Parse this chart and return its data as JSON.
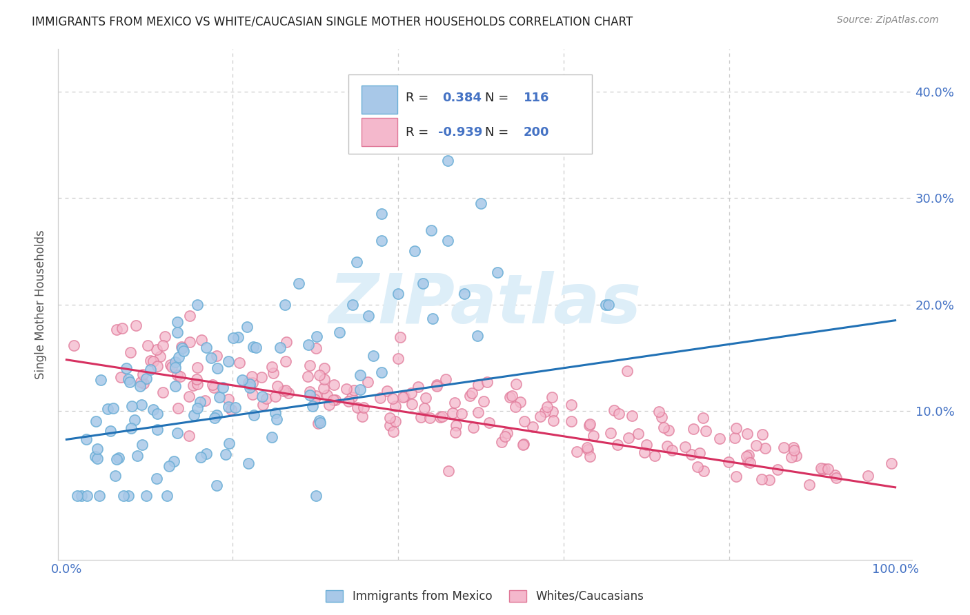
{
  "title": "IMMIGRANTS FROM MEXICO VS WHITE/CAUCASIAN SINGLE MOTHER HOUSEHOLDS CORRELATION CHART",
  "source": "Source: ZipAtlas.com",
  "ylabel": "Single Mother Households",
  "legend_label1": "Immigrants from Mexico",
  "legend_label2": "Whites/Caucasians",
  "R1": 0.384,
  "N1": 116,
  "R2": -0.939,
  "N2": 200,
  "blue_color": "#a8c8e8",
  "blue_edge_color": "#6aaed6",
  "pink_color": "#f4b8cc",
  "pink_edge_color": "#e07898",
  "blue_line_color": "#2171b5",
  "pink_line_color": "#d63060",
  "axis_label_color": "#4472c4",
  "watermark": "ZIPatlas",
  "watermark_color": "#ddeef8",
  "background_color": "#ffffff",
  "grid_color": "#cccccc",
  "blue_line_y0": 0.073,
  "blue_line_y1": 0.185,
  "pink_line_y0": 0.148,
  "pink_line_y1": 0.028,
  "xlim": [
    -0.01,
    1.02
  ],
  "ylim": [
    -0.04,
    0.44
  ],
  "yticks": [
    0.0,
    0.1,
    0.2,
    0.3,
    0.4
  ],
  "ytick_labels": [
    "",
    "10.0%",
    "20.0%",
    "30.0%",
    "40.0%"
  ]
}
